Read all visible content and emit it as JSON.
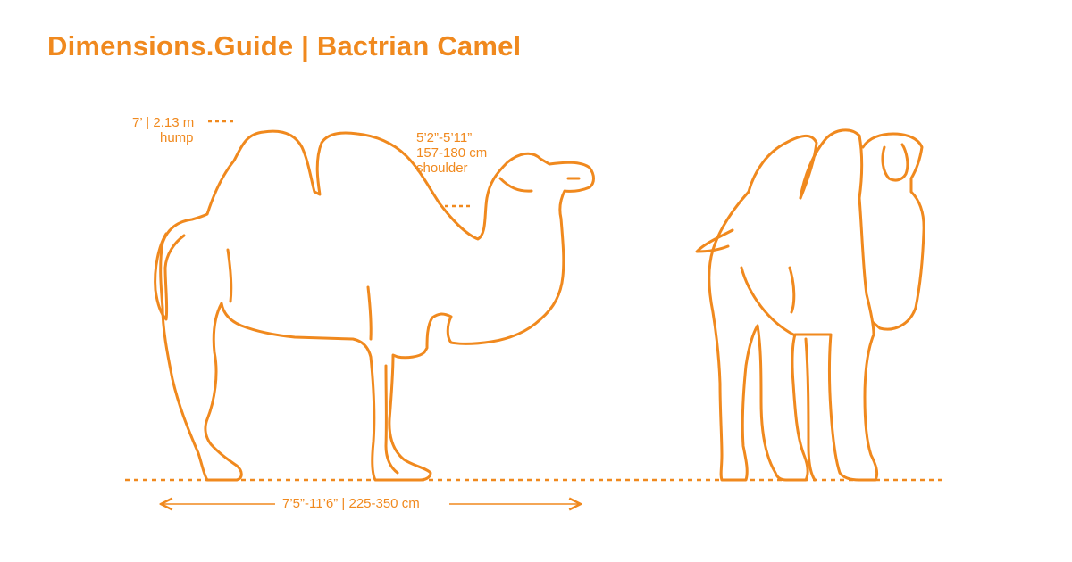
{
  "title": "Dimensions.Guide | Bactrian Camel",
  "colors": {
    "accent": "#F0891E",
    "background": "#FFFFFF"
  },
  "annotations": {
    "hump": {
      "line1": "7’ | 2.13 m",
      "line2": "hump"
    },
    "shoulder": {
      "line1": "5’2”-5’11”",
      "line2": "157-180 cm",
      "line3": "shoulder"
    },
    "length": "7’5”-11’6” | 225-350 cm"
  },
  "figures": {
    "side_view": "camel-side-view",
    "front_view": "camel-front-view"
  }
}
